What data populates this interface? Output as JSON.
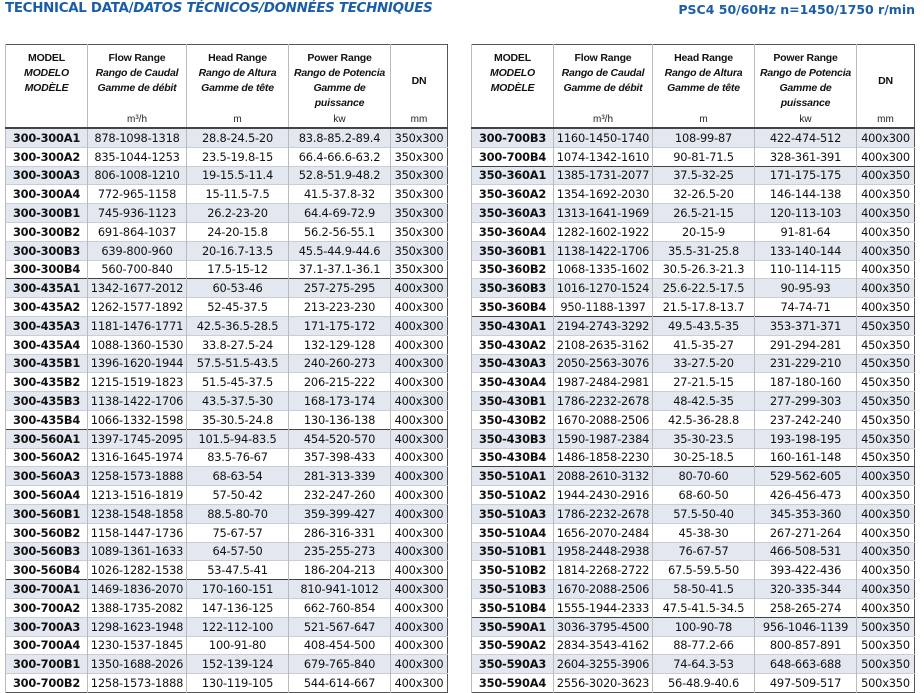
{
  "title": {
    "en": "TECHNICAL DATA/",
    "es": "DATOS TÉCNICOS/",
    "fr": "DONNÉES TECHNIQUES"
  },
  "spec": "PSC4  50/60Hz   n=1450/1750 r/min",
  "headers": [
    {
      "l1": "MODEL",
      "l2": "MODELO",
      "l3": "MODÈLE",
      "unit": ""
    },
    {
      "l1": "Flow Range",
      "l2": "Rango de Caudal",
      "l3": "Gamme de débit",
      "unit": "m³/h"
    },
    {
      "l1": "Head Range",
      "l2": "Rango de Altura",
      "l3": "Gamme de tête",
      "unit": "m"
    },
    {
      "l1": "Power Range",
      "l2": "Rango de Potencia",
      "l3": "Gamme de puissance",
      "unit": "kw"
    },
    {
      "l1": "DN",
      "l2": "",
      "l3": "",
      "unit": "mm"
    }
  ],
  "left_rows": [
    [
      "300-300A1",
      "878-1098-1318",
      "28.8-24.5-20",
      "83.8-85.2-89.4",
      "350x300"
    ],
    [
      "300-300A2",
      "835-1044-1253",
      "23.5-19.8-15",
      "66.4-66.6-63.2",
      "350x300"
    ],
    [
      "300-300A3",
      "806-1008-1210",
      "19-15.5-11.4",
      "52.8-51.9-48.2",
      "350x300"
    ],
    [
      "300-300A4",
      "772-965-1158",
      "15-11.5-7.5",
      "41.5-37.8-32",
      "350x300"
    ],
    [
      "300-300B1",
      "745-936-1123",
      "26.2-23-20",
      "64.4-69-72.9",
      "350x300"
    ],
    [
      "300-300B2",
      "691-864-1037",
      "24-20-15.8",
      "56.2-56-55.1",
      "350x300"
    ],
    [
      "300-300B3",
      "639-800-960",
      "20-16.7-13.5",
      "45.5-44.9-44.6",
      "350x300"
    ],
    [
      "300-300B4",
      "560-700-840",
      "17.5-15-12",
      "37.1-37.1-36.1",
      "350x300"
    ],
    [
      "300-435A1",
      "1342-1677-2012",
      "60-53-46",
      "257-275-295",
      "400x300"
    ],
    [
      "300-435A2",
      "1262-1577-1892",
      "52-45-37.5",
      "213-223-230",
      "400x300"
    ],
    [
      "300-435A3",
      "1181-1476-1771",
      "42.5-36.5-28.5",
      "171-175-172",
      "400x300"
    ],
    [
      "300-435A4",
      "1088-1360-1530",
      "33.8-27.5-24",
      "132-129-128",
      "400x300"
    ],
    [
      "300-435B1",
      "1396-1620-1944",
      "57.5-51.5-43.5",
      "240-260-273",
      "400x300"
    ],
    [
      "300-435B2",
      "1215-1519-1823",
      "51.5-45-37.5",
      "206-215-222",
      "400x300"
    ],
    [
      "300-435B3",
      "1138-1422-1706",
      "43.5-37.5-30",
      "168-173-174",
      "400x300"
    ],
    [
      "300-435B4",
      "1066-1332-1598",
      "35-30.5-24.8",
      "130-136-138",
      "400x300"
    ],
    [
      "300-560A1",
      "1397-1745-2095",
      "101.5-94-83.5",
      "454-520-570",
      "400x300"
    ],
    [
      "300-560A2",
      "1316-1645-1974",
      "83.5-76-67",
      "357-398-433",
      "400x300"
    ],
    [
      "300-560A3",
      "1258-1573-1888",
      "68-63-54",
      "281-313-339",
      "400x300"
    ],
    [
      "300-560A4",
      "1213-1516-1819",
      "57-50-42",
      "232-247-260",
      "400x300"
    ],
    [
      "300-560B1",
      "1238-1548-1858",
      "88.5-80-70",
      "359-399-427",
      "400x300"
    ],
    [
      "300-560B2",
      "1158-1447-1736",
      "75-67-57",
      "286-316-331",
      "400x300"
    ],
    [
      "300-560B3",
      "1089-1361-1633",
      "64-57-50",
      "235-255-273",
      "400x300"
    ],
    [
      "300-560B4",
      "1026-1282-1538",
      "53-47.5-41",
      "186-204-213",
      "400x300"
    ],
    [
      "300-700A1",
      "1469-1836-2070",
      "170-160-151",
      "810-941-1012",
      "400x300"
    ],
    [
      "300-700A2",
      "1388-1735-2082",
      "147-136-125",
      "662-760-854",
      "400x300"
    ],
    [
      "300-700A3",
      "1298-1623-1948",
      "122-112-100",
      "521-567-647",
      "400x300"
    ],
    [
      "300-700A4",
      "1230-1537-1845",
      "100-91-80",
      "408-454-500",
      "400x300"
    ],
    [
      "300-700B1",
      "1350-1688-2026",
      "152-139-124",
      "679-765-840",
      "400x300"
    ],
    [
      "300-700B2",
      "1258-1573-1888",
      "130-119-105",
      "544-614-667",
      "400x300"
    ]
  ],
  "right_rows": [
    [
      "300-700B3",
      "1160-1450-1740",
      "108-99-87",
      "422-474-512",
      "400x300"
    ],
    [
      "300-700B4",
      "1074-1342-1610",
      "90-81-71.5",
      "328-361-391",
      "400x300"
    ],
    [
      "350-360A1",
      "1385-1731-2077",
      "37.5-32-25",
      "171-175-175",
      "400x350"
    ],
    [
      "350-360A2",
      "1354-1692-2030",
      "32-26.5-20",
      "146-144-138",
      "400x350"
    ],
    [
      "350-360A3",
      "1313-1641-1969",
      "26.5-21-15",
      "120-113-103",
      "400x350"
    ],
    [
      "350-360A4",
      "1282-1602-1922",
      "20-15-9",
      "91-81-64",
      "400x350"
    ],
    [
      "350-360B1",
      "1138-1422-1706",
      "35.5-31-25.8",
      "133-140-144",
      "400x350"
    ],
    [
      "350-360B2",
      "1068-1335-1602",
      "30.5-26.3-21.3",
      "110-114-115",
      "400x350"
    ],
    [
      "350-360B3",
      "1016-1270-1524",
      "25.6-22.5-17.5",
      "90-95-93",
      "400x350"
    ],
    [
      "350-360B4",
      "950-1188-1397",
      "21.5-17.8-13.7",
      "74-74-71",
      "400x350"
    ],
    [
      "350-430A1",
      "2194-2743-3292",
      "49.5-43.5-35",
      "353-371-371",
      "450x350"
    ],
    [
      "350-430A2",
      "2108-2635-3162",
      "41.5-35-27",
      "291-294-281",
      "450x350"
    ],
    [
      "350-430A3",
      "2050-2563-3076",
      "33-27.5-20",
      "231-229-210",
      "450x350"
    ],
    [
      "350-430A4",
      "1987-2484-2981",
      "27-21.5-15",
      "187-180-160",
      "450x350"
    ],
    [
      "350-430B1",
      "1786-2232-2678",
      "48-42.5-35",
      "277-299-303",
      "450x350"
    ],
    [
      "350-430B2",
      "1670-2088-2506",
      "42.5-36-28.8",
      "237-242-240",
      "450x350"
    ],
    [
      "350-430B3",
      "1590-1987-2384",
      "35-30-23.5",
      "193-198-195",
      "450x350"
    ],
    [
      "350-430B4",
      "1486-1858-2230",
      "30-25-18.5",
      "160-161-148",
      "450x350"
    ],
    [
      "350-510A1",
      "2088-2610-3132",
      "80-70-60",
      "529-562-605",
      "400x350"
    ],
    [
      "350-510A2",
      "1944-2430-2916",
      "68-60-50",
      "426-456-473",
      "400x350"
    ],
    [
      "350-510A3",
      "1786-2232-2678",
      "57.5-50-40",
      "345-353-360",
      "400x350"
    ],
    [
      "350-510A4",
      "1656-2070-2484",
      "45-38-30",
      "267-271-264",
      "400x350"
    ],
    [
      "350-510B1",
      "1958-2448-2938",
      "76-67-57",
      "466-508-531",
      "400x350"
    ],
    [
      "350-510B2",
      "1814-2268-2722",
      "67.5-59.5-50",
      "393-422-436",
      "400x350"
    ],
    [
      "350-510B3",
      "1670-2088-2506",
      "58-50-41.5",
      "320-335-344",
      "400x350"
    ],
    [
      "350-510B4",
      "1555-1944-2333",
      "47.5-41.5-34.5",
      "258-265-274",
      "400x350"
    ],
    [
      "350-590A1",
      "3036-3795-4500",
      "100-90-78",
      "956-1046-1139",
      "500x350"
    ],
    [
      "350-590A2",
      "2834-3543-4162",
      "88-77.2-66",
      "800-857-891",
      "500x350"
    ],
    [
      "350-590A3",
      "2604-3255-3906",
      "74-64.3-53",
      "648-663-688",
      "500x350"
    ],
    [
      "350-590A4",
      "2556-3020-3623",
      "56-48.9-40.6",
      "497-509-517",
      "500x350"
    ]
  ]
}
